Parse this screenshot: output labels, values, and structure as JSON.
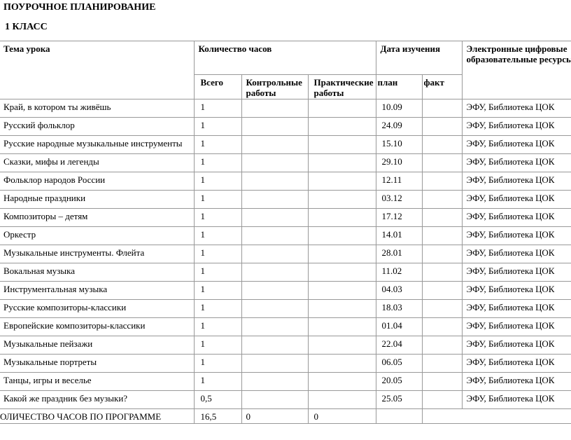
{
  "page": {
    "title": "ПОУРОЧНОЕ ПЛАНИРОВАНИЕ",
    "subtitle": "1 КЛАСС"
  },
  "table": {
    "headers": {
      "topic": "Тема урока",
      "hours_group": "Количество часов",
      "hours_total": "Всего",
      "hours_control": "Контрольные работы",
      "hours_practical": "Практические работы",
      "date_group": "Дата изучения",
      "date_plan": "план",
      "date_fact": "факт",
      "resources": "Электронные цифровые образовательные ресурсы"
    },
    "rows": [
      {
        "topic": "Край, в котором ты живёшь",
        "total": "1",
        "control": "",
        "practical": "",
        "plan": "10.09",
        "fact": "",
        "resources": "ЭФУ, Библиотека ЦОК"
      },
      {
        "topic": "Русский фольклор",
        "total": "1",
        "control": "",
        "practical": "",
        "plan": "24.09",
        "fact": "",
        "resources": "ЭФУ, Библиотека ЦОК"
      },
      {
        "topic": "Русские народные музыкальные инструменты",
        "total": "1",
        "control": "",
        "practical": "",
        "plan": "15.10",
        "fact": "",
        "resources": "ЭФУ, Библиотека ЦОК"
      },
      {
        "topic": "Сказки, мифы и легенды",
        "total": "1",
        "control": "",
        "practical": "",
        "plan": "29.10",
        "fact": "",
        "resources": "ЭФУ, Библиотека ЦОК"
      },
      {
        "topic": "Фольклор народов России",
        "total": "1",
        "control": "",
        "practical": "",
        "plan": "12.11",
        "fact": "",
        "resources": "ЭФУ, Библиотека ЦОК"
      },
      {
        "topic": "Народные праздники",
        "total": "1",
        "control": "",
        "practical": "",
        "plan": "03.12",
        "fact": "",
        "resources": "ЭФУ, Библиотека ЦОК"
      },
      {
        "topic": "Композиторы – детям",
        "total": "1",
        "control": "",
        "practical": "",
        "plan": "17.12",
        "fact": "",
        "resources": "ЭФУ, Библиотека ЦОК"
      },
      {
        "topic": "Оркестр",
        "total": "1",
        "control": "",
        "practical": "",
        "plan": "14.01",
        "fact": "",
        "resources": "ЭФУ, Библиотека ЦОК"
      },
      {
        "topic": "Музыкальные инструменты. Флейта",
        "total": "1",
        "control": "",
        "practical": "",
        "plan": "28.01",
        "fact": "",
        "resources": "ЭФУ, Библиотека ЦОК"
      },
      {
        "topic": "Вокальная музыка",
        "total": "1",
        "control": "",
        "practical": "",
        "plan": "11.02",
        "fact": "",
        "resources": "ЭФУ, Библиотека ЦОК"
      },
      {
        "topic": "Инструментальная музыка",
        "total": "1",
        "control": "",
        "practical": "",
        "plan": "04.03",
        "fact": "",
        "resources": "ЭФУ, Библиотека ЦОК"
      },
      {
        "topic": "Русские композиторы-классики",
        "total": "1",
        "control": "",
        "practical": "",
        "plan": "18.03",
        "fact": "",
        "resources": "ЭФУ, Библиотека ЦОК"
      },
      {
        "topic": "Европейские композиторы-классики",
        "total": "1",
        "control": "",
        "practical": "",
        "plan": "01.04",
        "fact": "",
        "resources": "ЭФУ, Библиотека ЦОК"
      },
      {
        "topic": "Музыкальные пейзажи",
        "total": "1",
        "control": "",
        "practical": "",
        "plan": "22.04",
        "fact": "",
        "resources": "ЭФУ, Библиотека ЦОК"
      },
      {
        "topic": "Музыкальные портреты",
        "total": "1",
        "control": "",
        "practical": "",
        "plan": "06.05",
        "fact": "",
        "resources": "ЭФУ, Библиотека ЦОК"
      },
      {
        "topic": "Танцы, игры и веселье",
        "total": "1",
        "control": "",
        "practical": "",
        "plan": "20.05",
        "fact": "",
        "resources": "ЭФУ, Библиотека ЦОК"
      },
      {
        "topic": "Какой же праздник без музыки?",
        "total": "0,5",
        "control": "",
        "practical": "",
        "plan": "25.05",
        "fact": "",
        "resources": "ЭФУ, Библиотека ЦОК"
      }
    ],
    "total_row": {
      "topic": "ОЛИЧЕСТВО ЧАСОВ ПО ПРОГРАММЕ",
      "total": "16,5",
      "control": "0",
      "practical": "0",
      "plan": "",
      "fact_resources": ""
    }
  }
}
